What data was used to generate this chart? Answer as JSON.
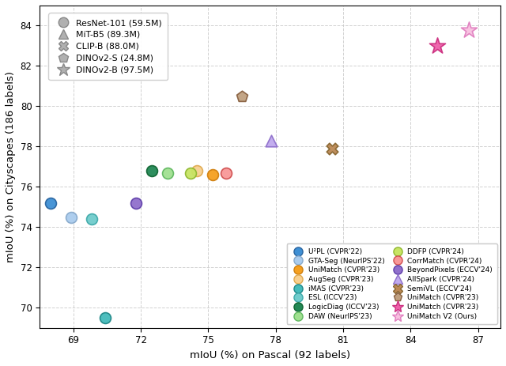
{
  "xlabel": "mIoU (%) on Pascal (92 labels)",
  "ylabel": "mIoU (%) on Cityscapes (186 labels)",
  "xlim": [
    67.5,
    88.0
  ],
  "ylim": [
    69.0,
    85.0
  ],
  "xticks": [
    69,
    72,
    75,
    78,
    81,
    84,
    87
  ],
  "yticks": [
    70,
    72,
    74,
    76,
    78,
    80,
    82,
    84
  ],
  "background_color": "#ffffff",
  "grid_color": "#cccccc",
  "scatter_points": [
    {
      "pascal": 68.0,
      "city": 75.2,
      "marker": "o",
      "fc": "#3e8fd4",
      "ec": "#2a65a0",
      "s": 100
    },
    {
      "pascal": 68.9,
      "city": 74.5,
      "marker": "o",
      "fc": "#aaccee",
      "ec": "#88aacc",
      "s": 100
    },
    {
      "pascal": 75.2,
      "city": 76.6,
      "marker": "o",
      "fc": "#f5a020",
      "ec": "#d08010",
      "s": 100
    },
    {
      "pascal": 74.5,
      "city": 76.8,
      "marker": "o",
      "fc": "#f8d090",
      "ec": "#e0aa50",
      "s": 100
    },
    {
      "pascal": 69.8,
      "city": 74.4,
      "marker": "o",
      "fc": "#70cccc",
      "ec": "#40aaaa",
      "s": 100
    },
    {
      "pascal": 72.5,
      "city": 76.8,
      "marker": "o",
      "fc": "#228855",
      "ec": "#116633",
      "s": 100
    },
    {
      "pascal": 73.2,
      "city": 76.7,
      "marker": "o",
      "fc": "#a0e090",
      "ec": "#60b860",
      "s": 100
    },
    {
      "pascal": 74.2,
      "city": 76.7,
      "marker": "o",
      "fc": "#c8e464",
      "ec": "#90b830",
      "s": 100
    },
    {
      "pascal": 75.8,
      "city": 76.7,
      "marker": "o",
      "fc": "#f89898",
      "ec": "#d05050",
      "s": 100
    },
    {
      "pascal": 71.8,
      "city": 75.2,
      "marker": "o",
      "fc": "#9070cc",
      "ec": "#6040aa",
      "s": 100
    },
    {
      "pascal": 70.4,
      "city": 69.5,
      "marker": "o",
      "fc": "#44bbbb",
      "ec": "#208888",
      "s": 100
    },
    {
      "pascal": 77.8,
      "city": 78.3,
      "marker": "^",
      "fc": "#c0aaee",
      "ec": "#9070cc",
      "s": 110
    },
    {
      "pascal": 80.5,
      "city": 77.9,
      "marker": "X",
      "fc": "#bb8855",
      "ec": "#886630",
      "s": 110
    },
    {
      "pascal": 76.5,
      "city": 80.5,
      "marker": "p",
      "fc": "#c0a080",
      "ec": "#886040",
      "s": 110
    },
    {
      "pascal": 85.2,
      "city": 83.0,
      "marker": "*",
      "fc": "#ee60aa",
      "ec": "#cc3080",
      "s": 230
    },
    {
      "pascal": 86.6,
      "city": 83.8,
      "marker": "*",
      "fc": "#f8c0e0",
      "ec": "#e080c0",
      "s": 230
    }
  ],
  "backbone_legend": [
    {
      "label": "ResNet-101 (59.5M)",
      "marker": "o",
      "ms": 9
    },
    {
      "label": "MiT-B5 (89.3M)",
      "marker": "^",
      "ms": 9
    },
    {
      "label": "CLIP-B (88.0M)",
      "marker": "X",
      "ms": 9
    },
    {
      "label": "DINOv2-S (24.8M)",
      "marker": "p",
      "ms": 9
    },
    {
      "label": "DINOv2-B (97.5M)",
      "marker": "*",
      "ms": 12
    }
  ],
  "method_legend_left": [
    {
      "label": "U²PL (CVPR'22)",
      "marker": "o",
      "fc": "#3e8fd4",
      "ec": "#2a65a0"
    },
    {
      "label": "GTA-Seg (NeurIPS'22)",
      "marker": "o",
      "fc": "#aaccee",
      "ec": "#88aacc"
    },
    {
      "label": "UniMatch (CVPR'23)",
      "marker": "o",
      "fc": "#f5a020",
      "ec": "#d08010"
    },
    {
      "label": "AugSeg (CVPR'23)",
      "marker": "o",
      "fc": "#f8d090",
      "ec": "#e0aa50"
    },
    {
      "label": "iMAS (CVPR'23)",
      "marker": "o",
      "fc": "#44bbbb",
      "ec": "#208888"
    },
    {
      "label": "ESL (ICCV'23)",
      "marker": "o",
      "fc": "#70cccc",
      "ec": "#40aaaa"
    },
    {
      "label": "LogicDiag (ICCV'23)",
      "marker": "o",
      "fc": "#228855",
      "ec": "#116633"
    },
    {
      "label": "DAW (NeurIPS'23)",
      "marker": "o",
      "fc": "#a0e090",
      "ec": "#60b860"
    }
  ],
  "method_legend_right": [
    {
      "label": "DDFP (CVPR'24)",
      "marker": "o",
      "fc": "#c8e464",
      "ec": "#90b830"
    },
    {
      "label": "CorrMatch (CVPR'24)",
      "marker": "o",
      "fc": "#f89898",
      "ec": "#d05050"
    },
    {
      "label": "BeyondPixels (ECCV'24)",
      "marker": "o",
      "fc": "#9070cc",
      "ec": "#6040aa"
    },
    {
      "label": "AllSpark (CVPR'24)",
      "marker": "^",
      "fc": "#c0aaee",
      "ec": "#9070cc"
    },
    {
      "label": "SemiVL (ECCV'24)",
      "marker": "X",
      "fc": "#bb8855",
      "ec": "#886630"
    },
    {
      "label": "UniMatch (CVPR'23)",
      "marker": "p",
      "fc": "#c0a080",
      "ec": "#886040"
    },
    {
      "label": "UniMatch (CVPR'23)",
      "marker": "*",
      "fc": "#ee60aa",
      "ec": "#cc3080"
    },
    {
      "label": "UniMatch V2 (Ours)",
      "marker": "*",
      "fc": "#f8c0e0",
      "ec": "#e080c0"
    }
  ]
}
